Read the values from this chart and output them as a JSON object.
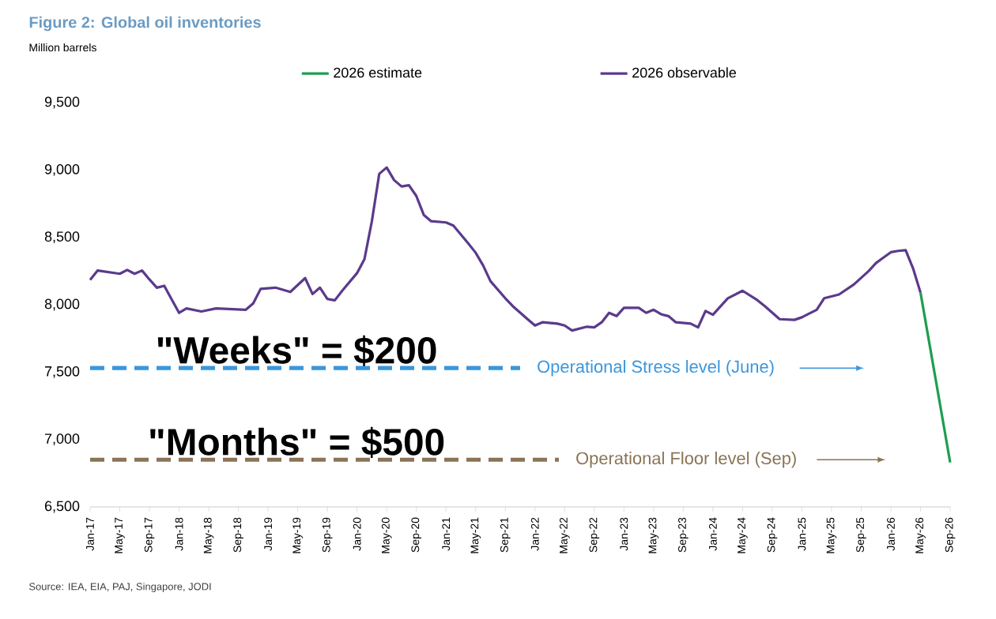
{
  "chart_data": {
    "type": "line",
    "title": "Figure 2: Global oil inventories",
    "ylabel": "Million barrels",
    "legend": "top",
    "xlim": [
      "2017-01",
      "2026-09"
    ],
    "xticks": [
      {
        "value": "2017-01",
        "label": "Jan-17"
      },
      {
        "value": "2017-05",
        "label": "May-17"
      },
      {
        "value": "2017-09",
        "label": "Sep-17"
      },
      {
        "value": "2018-01",
        "label": "Jan-18"
      },
      {
        "value": "2018-05",
        "label": "May-18"
      },
      {
        "value": "2018-09",
        "label": "Sep-18"
      },
      {
        "value": "2019-01",
        "label": "Jan-19"
      },
      {
        "value": "2019-05",
        "label": "May-19"
      },
      {
        "value": "2019-09",
        "label": "Sep-19"
      },
      {
        "value": "2020-01",
        "label": "Jan-20"
      },
      {
        "value": "2020-05",
        "label": "May-20"
      },
      {
        "value": "2020-09",
        "label": "Sep-20"
      },
      {
        "value": "2021-01",
        "label": "Jan-21"
      },
      {
        "value": "2021-05",
        "label": "May-21"
      },
      {
        "value": "2021-09",
        "label": "Sep-21"
      },
      {
        "value": "2022-01",
        "label": "Jan-22"
      },
      {
        "value": "2022-05",
        "label": "May-22"
      },
      {
        "value": "2022-09",
        "label": "Sep-22"
      },
      {
        "value": "2023-01",
        "label": "Jan-23"
      },
      {
        "value": "2023-05",
        "label": "May-23"
      },
      {
        "value": "2023-09",
        "label": "Sep-23"
      },
      {
        "value": "2024-01",
        "label": "Jan-24"
      },
      {
        "value": "2024-05",
        "label": "May-24"
      },
      {
        "value": "2024-09",
        "label": "Sep-24"
      },
      {
        "value": "2025-01",
        "label": "Jan-25"
      },
      {
        "value": "2025-05",
        "label": "May-25"
      },
      {
        "value": "2025-09",
        "label": "Sep-25"
      },
      {
        "value": "2026-01",
        "label": "Jan-26"
      },
      {
        "value": "2026-05",
        "label": "May-26"
      },
      {
        "value": "2026-09",
        "label": "Sep-26"
      }
    ],
    "ylim": [
      6500,
      9500
    ],
    "yticks": [
      {
        "value": 6500,
        "label": "6,500"
      },
      {
        "value": 7000,
        "label": "7,000"
      },
      {
        "value": 7500,
        "label": "7,500"
      },
      {
        "value": 8000,
        "label": "8,000"
      },
      {
        "value": 8500,
        "label": "8,500"
      },
      {
        "value": 9000,
        "label": "9,000"
      },
      {
        "value": 9500,
        "label": "9,500"
      }
    ],
    "series": [
      {
        "name": "2026 estimate",
        "color": "#1e9e4f",
        "x": [
          "2026-05",
          "2026-09"
        ],
        "values": [
          8090,
          6830
        ]
      },
      {
        "name": "2026 observable",
        "color": "#5b3a8c",
        "x": [
          "2017-01",
          "2017-02",
          "2017-05",
          "2017-06",
          "2017-07",
          "2017-08",
          "2017-09",
          "2017-10",
          "2017-11",
          "2017-12",
          "2018-01",
          "2018-02",
          "2018-04",
          "2018-06",
          "2018-10",
          "2018-11",
          "2018-12",
          "2019-02",
          "2019-04",
          "2019-06",
          "2019-07",
          "2019-08",
          "2019-09",
          "2019-10",
          "2019-11",
          "2020-01",
          "2020-02",
          "2020-03",
          "2020-04",
          "2020-05",
          "2020-06",
          "2020-07",
          "2020-08",
          "2020-09",
          "2020-10",
          "2020-11",
          "2021-01",
          "2021-02",
          "2021-04",
          "2021-05",
          "2021-06",
          "2021-07",
          "2021-09",
          "2021-10",
          "2021-12",
          "2022-01",
          "2022-02",
          "2022-04",
          "2022-05",
          "2022-06",
          "2022-08",
          "2022-09",
          "2022-10",
          "2022-11",
          "2022-12",
          "2023-01",
          "2023-03",
          "2023-04",
          "2023-05",
          "2023-06",
          "2023-07",
          "2023-08",
          "2023-10",
          "2023-11",
          "2023-12",
          "2024-01",
          "2024-03",
          "2024-05",
          "2024-07",
          "2024-08",
          "2024-10",
          "2024-12",
          "2025-01",
          "2025-03",
          "2025-04",
          "2025-06",
          "2025-08",
          "2025-10",
          "2025-11",
          "2025-12",
          "2026-01",
          "2026-02",
          "2026-03",
          "2026-04",
          "2026-05"
        ],
        "values": [
          8184,
          8254,
          8230,
          8259,
          8230,
          8254,
          8188,
          8127,
          8141,
          8040,
          7940,
          7973,
          7950,
          7973,
          7963,
          8010,
          8118,
          8127,
          8095,
          8198,
          8080,
          8127,
          8043,
          8033,
          8104,
          8235,
          8338,
          8620,
          8972,
          9019,
          8925,
          8878,
          8887,
          8807,
          8667,
          8620,
          8611,
          8587,
          8456,
          8386,
          8292,
          8175,
          8048,
          7990,
          7893,
          7846,
          7870,
          7860,
          7846,
          7809,
          7837,
          7832,
          7870,
          7940,
          7916,
          7977,
          7977,
          7940,
          7963,
          7930,
          7916,
          7870,
          7860,
          7832,
          7954,
          7926,
          8048,
          8104,
          8034,
          7990,
          7893,
          7888,
          7907,
          7963,
          8048,
          8076,
          8150,
          8250,
          8310,
          8350,
          8390,
          8400,
          8405,
          8269,
          8090
        ]
      }
    ],
    "ref_lines": [
      {
        "axis": "y",
        "value": 7530,
        "label": "Operational Stress level (June)",
        "color": "#3a96dd",
        "line_style": "dashed"
      },
      {
        "axis": "y",
        "value": 6850,
        "label": "Operational Floor level (Sep)",
        "color": "#8b7355",
        "line_style": "dashed"
      }
    ],
    "annotations": [
      "\"Weeks\" = $200",
      "\"Months\" = $500",
      "Source: IEA, EIA, PAJ, Singapore, JODI"
    ]
  }
}
